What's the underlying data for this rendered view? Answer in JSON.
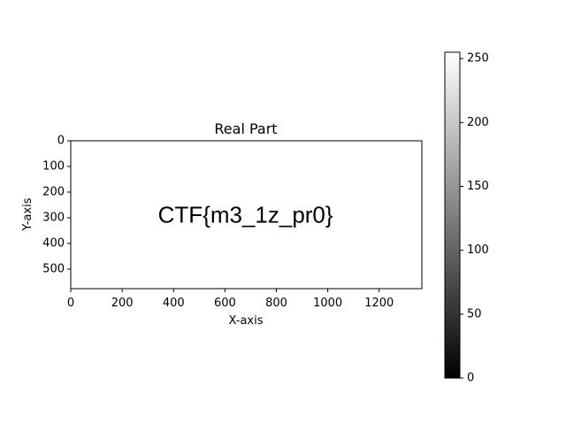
{
  "chart_data": {
    "type": "heatmap",
    "title": "Real Part",
    "xlabel": "X-axis",
    "ylabel": "Y-axis",
    "image_size": [
      1366,
      576
    ],
    "xlim": [
      0,
      1366
    ],
    "ylim": [
      576,
      0
    ],
    "x_ticks": [
      "0",
      "200",
      "400",
      "600",
      "800",
      "1000",
      "1200"
    ],
    "y_ticks": [
      "0",
      "100",
      "200",
      "300",
      "400",
      "500"
    ],
    "background_value": 255,
    "text_value": 0,
    "image_text": "CTF{m3_1z_pr0}",
    "image_text_position": [
      680,
      288
    ],
    "colormap": "gray",
    "colorbar": {
      "range": [
        0,
        255
      ],
      "ticks": [
        "0",
        "50",
        "100",
        "150",
        "200",
        "250"
      ]
    },
    "grid": false,
    "legend": false
  }
}
